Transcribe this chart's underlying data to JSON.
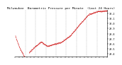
{
  "title": "Milwaukee  Barometric Pressure per Minute  (Last 24 Hours)",
  "background_color": "#ffffff",
  "plot_background": "#ffffff",
  "grid_color": "#aaaaaa",
  "marker_color": "#cc0000",
  "ylim": [
    29.35,
    30.27
  ],
  "yticks": [
    29.4,
    29.5,
    29.6,
    29.7,
    29.8,
    29.9,
    30.0,
    30.1,
    30.2
  ],
  "n_points": 1440,
  "title_fontsize": 3.2,
  "tick_fontsize": 2.5,
  "num_vert_gridlines": 8,
  "marker_size": 0.5
}
